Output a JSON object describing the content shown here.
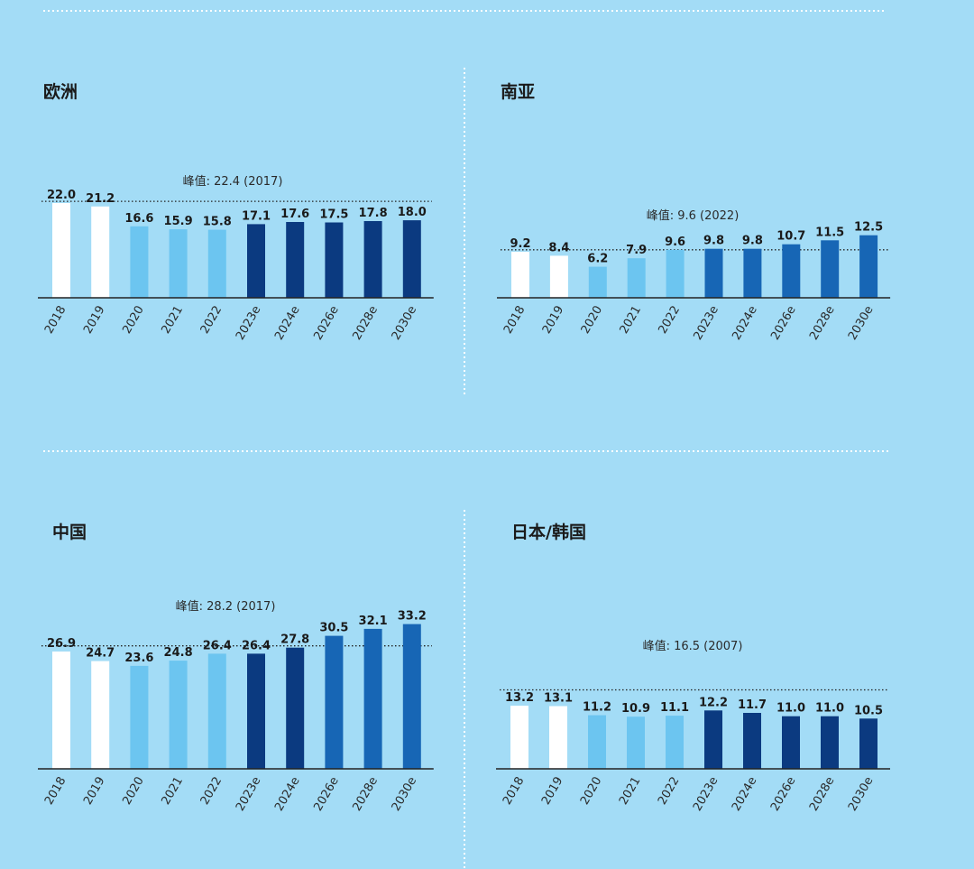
{
  "colors": {
    "background": "#a3dcf6",
    "actual": "#ffffff",
    "actual_light": "#6cc5f0",
    "forecast_dark": "#0b3a80",
    "forecast_mid": "#1766b5",
    "axis": "#222222"
  },
  "chart_data": [
    {
      "type": "bar",
      "title": "欧洲",
      "categories": [
        "2018",
        "2019",
        "2020",
        "2021",
        "2022",
        "2023e",
        "2024e",
        "2026e",
        "2028e",
        "2030e"
      ],
      "values": [
        22.0,
        21.2,
        16.6,
        15.9,
        15.8,
        17.1,
        17.6,
        17.5,
        17.8,
        18.0
      ],
      "labels": [
        "22.0",
        "21.2",
        "16.6",
        "15.9",
        "15.8",
        "17.1",
        "17.6",
        "17.5",
        "17.8",
        "18.0"
      ],
      "bar_styles": [
        "actual",
        "actual",
        "actual_light",
        "actual_light",
        "actual_light",
        "forecast_dark",
        "forecast_dark",
        "forecast_dark",
        "forecast_dark",
        "forecast_dark"
      ],
      "peak_value": 22.4,
      "peak_label": "峰值: 22.4 (2017)",
      "ylim": [
        0,
        25
      ]
    },
    {
      "type": "bar",
      "title": "南亚",
      "categories": [
        "2018",
        "2019",
        "2020",
        "2021",
        "2022",
        "2023e",
        "2024e",
        "2026e",
        "2028e",
        "2030e"
      ],
      "values": [
        9.2,
        8.4,
        6.2,
        7.9,
        9.6,
        9.8,
        9.8,
        10.7,
        11.5,
        12.5
      ],
      "labels": [
        "9.2",
        "8.4",
        "6.2",
        "7.9",
        "9.6",
        "9.8",
        "9.8",
        "10.7",
        "11.5",
        "12.5"
      ],
      "bar_styles": [
        "actual",
        "actual",
        "actual_light",
        "actual_light",
        "actual_light",
        "forecast_mid",
        "forecast_mid",
        "forecast_mid",
        "forecast_mid",
        "forecast_mid"
      ],
      "peak_value": 9.6,
      "peak_label": "峰值: 9.6 (2022)",
      "ylim": [
        0,
        18
      ]
    },
    {
      "type": "bar",
      "title": "中国",
      "categories": [
        "2018",
        "2019",
        "2020",
        "2021",
        "2022",
        "2023e",
        "2024e",
        "2026e",
        "2028e",
        "2030e"
      ],
      "values": [
        26.9,
        24.7,
        23.6,
        24.8,
        26.4,
        26.4,
        27.8,
        30.5,
        32.1,
        33.2
      ],
      "labels": [
        "26.9",
        "24.7",
        "23.6",
        "24.8",
        "26.4",
        "26.4",
        "27.8",
        "30.5",
        "32.1",
        "33.2"
      ],
      "bar_styles": [
        "actual",
        "actual",
        "actual_light",
        "actual_light",
        "actual_light",
        "forecast_dark",
        "forecast_dark",
        "forecast_mid",
        "forecast_mid",
        "forecast_mid"
      ],
      "peak_value": 28.2,
      "peak_label": "峰值: 28.2 (2017)",
      "ylim": [
        0,
        40
      ]
    },
    {
      "type": "bar",
      "title": "日本/韩国",
      "categories": [
        "2018",
        "2019",
        "2020",
        "2021",
        "2022",
        "2023e",
        "2024e",
        "2026e",
        "2028e",
        "2030e"
      ],
      "values": [
        13.2,
        13.1,
        11.2,
        10.9,
        11.1,
        12.2,
        11.7,
        11.0,
        11.0,
        10.5
      ],
      "labels": [
        "13.2",
        "13.1",
        "11.2",
        "10.9",
        "11.1",
        "12.2",
        "11.7",
        "11.0",
        "11.0",
        "10.5"
      ],
      "bar_styles": [
        "actual",
        "actual",
        "actual_light",
        "actual_light",
        "actual_light",
        "forecast_dark",
        "forecast_dark",
        "forecast_dark",
        "forecast_dark",
        "forecast_dark"
      ],
      "peak_value": 16.5,
      "peak_label": "峰值: 16.5 (2007)",
      "ylim": [
        0,
        28
      ]
    }
  ]
}
